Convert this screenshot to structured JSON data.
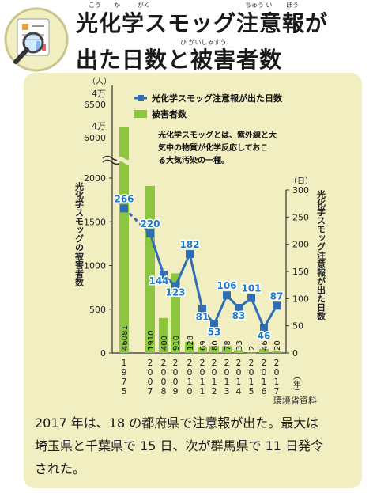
{
  "title": {
    "line1": "光化学スモッグ注意報が",
    "line2": "出た日数と被害者数"
  },
  "ruby": {
    "kou": "こう",
    "ka": "か",
    "gaku": "がく",
    "chuui": "ちゅう い",
    "hou": "ほう",
    "higaisha": "ひ がいしゃすう"
  },
  "chart_data": {
    "type": "bar+line",
    "categories": [
      "1975",
      "2007",
      "2008",
      "2009",
      "2010",
      "2011",
      "2012",
      "2013",
      "2014",
      "2015",
      "2016",
      "2017"
    ],
    "category_suffix": "（年）",
    "series": [
      {
        "name": "光化学スモッグ注意報が出た日数",
        "type": "line",
        "values": [
          266,
          220,
          144,
          123,
          182,
          81,
          53,
          106,
          83,
          101,
          46,
          87
        ]
      },
      {
        "name": "被害者数",
        "type": "bar",
        "values": [
          46081,
          1910,
          400,
          910,
          128,
          69,
          80,
          78,
          33,
          2,
          46,
          20
        ]
      }
    ],
    "y_left": {
      "label": "光化学スモッグの被害者数",
      "unit": "（人）",
      "ticks": [
        "0",
        "500",
        "1000",
        "1500",
        "2000"
      ],
      "break_ticks": [
        "6000",
        "4万",
        "6500",
        "4万"
      ]
    },
    "y_right": {
      "label": "光化学スモッグ注意報が出た日数",
      "unit": "（日）",
      "ticks": [
        "0",
        "50",
        "100",
        "150",
        "200",
        "250",
        "300"
      ],
      "range": [
        0,
        300
      ]
    },
    "note": [
      "光化学スモッグとは、紫外線と大",
      "気中の物質が化学反応しておこ",
      "る大気汚染の一種。"
    ],
    "colors": {
      "bar": "#8cc63f",
      "line": "#2f6db5",
      "label": "#1f7ac7"
    }
  },
  "source": "環境省資料",
  "caption": [
    "2017 年は、18 の都府県で注意報が出た。最大は",
    "埼玉県と千葉県で 15 日、次が群馬県で 11 日発令",
    "された。"
  ]
}
